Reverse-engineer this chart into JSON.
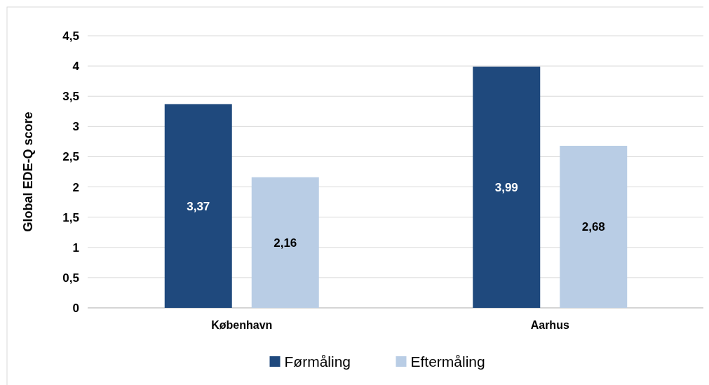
{
  "chart_data": {
    "type": "bar",
    "ylabel": "Global EDE-Q score",
    "categories": [
      "København",
      "Aarhus"
    ],
    "series": [
      {
        "name": "Førmåling",
        "color": "#1f497d",
        "values": [
          3.37,
          3.99
        ],
        "value_labels": [
          "3,37",
          "3,99"
        ]
      },
      {
        "name": "Eftermåling",
        "color": "#b9cde5",
        "values": [
          2.16,
          2.68
        ],
        "value_labels": [
          "2,16",
          "2,68"
        ]
      }
    ],
    "ylim": [
      0,
      4.5
    ],
    "yticks": [
      {
        "value": 0,
        "label": "0"
      },
      {
        "value": 0.5,
        "label": "0,5"
      },
      {
        "value": 1,
        "label": "1"
      },
      {
        "value": 1.5,
        "label": "1,5"
      },
      {
        "value": 2,
        "label": "2"
      },
      {
        "value": 2.5,
        "label": "2,5"
      },
      {
        "value": 3,
        "label": "3"
      },
      {
        "value": 3.5,
        "label": "3,5"
      },
      {
        "value": 4,
        "label": "4"
      },
      {
        "value": 4.5,
        "label": "4,5"
      }
    ],
    "grid": "y",
    "legend": "bottom"
  }
}
